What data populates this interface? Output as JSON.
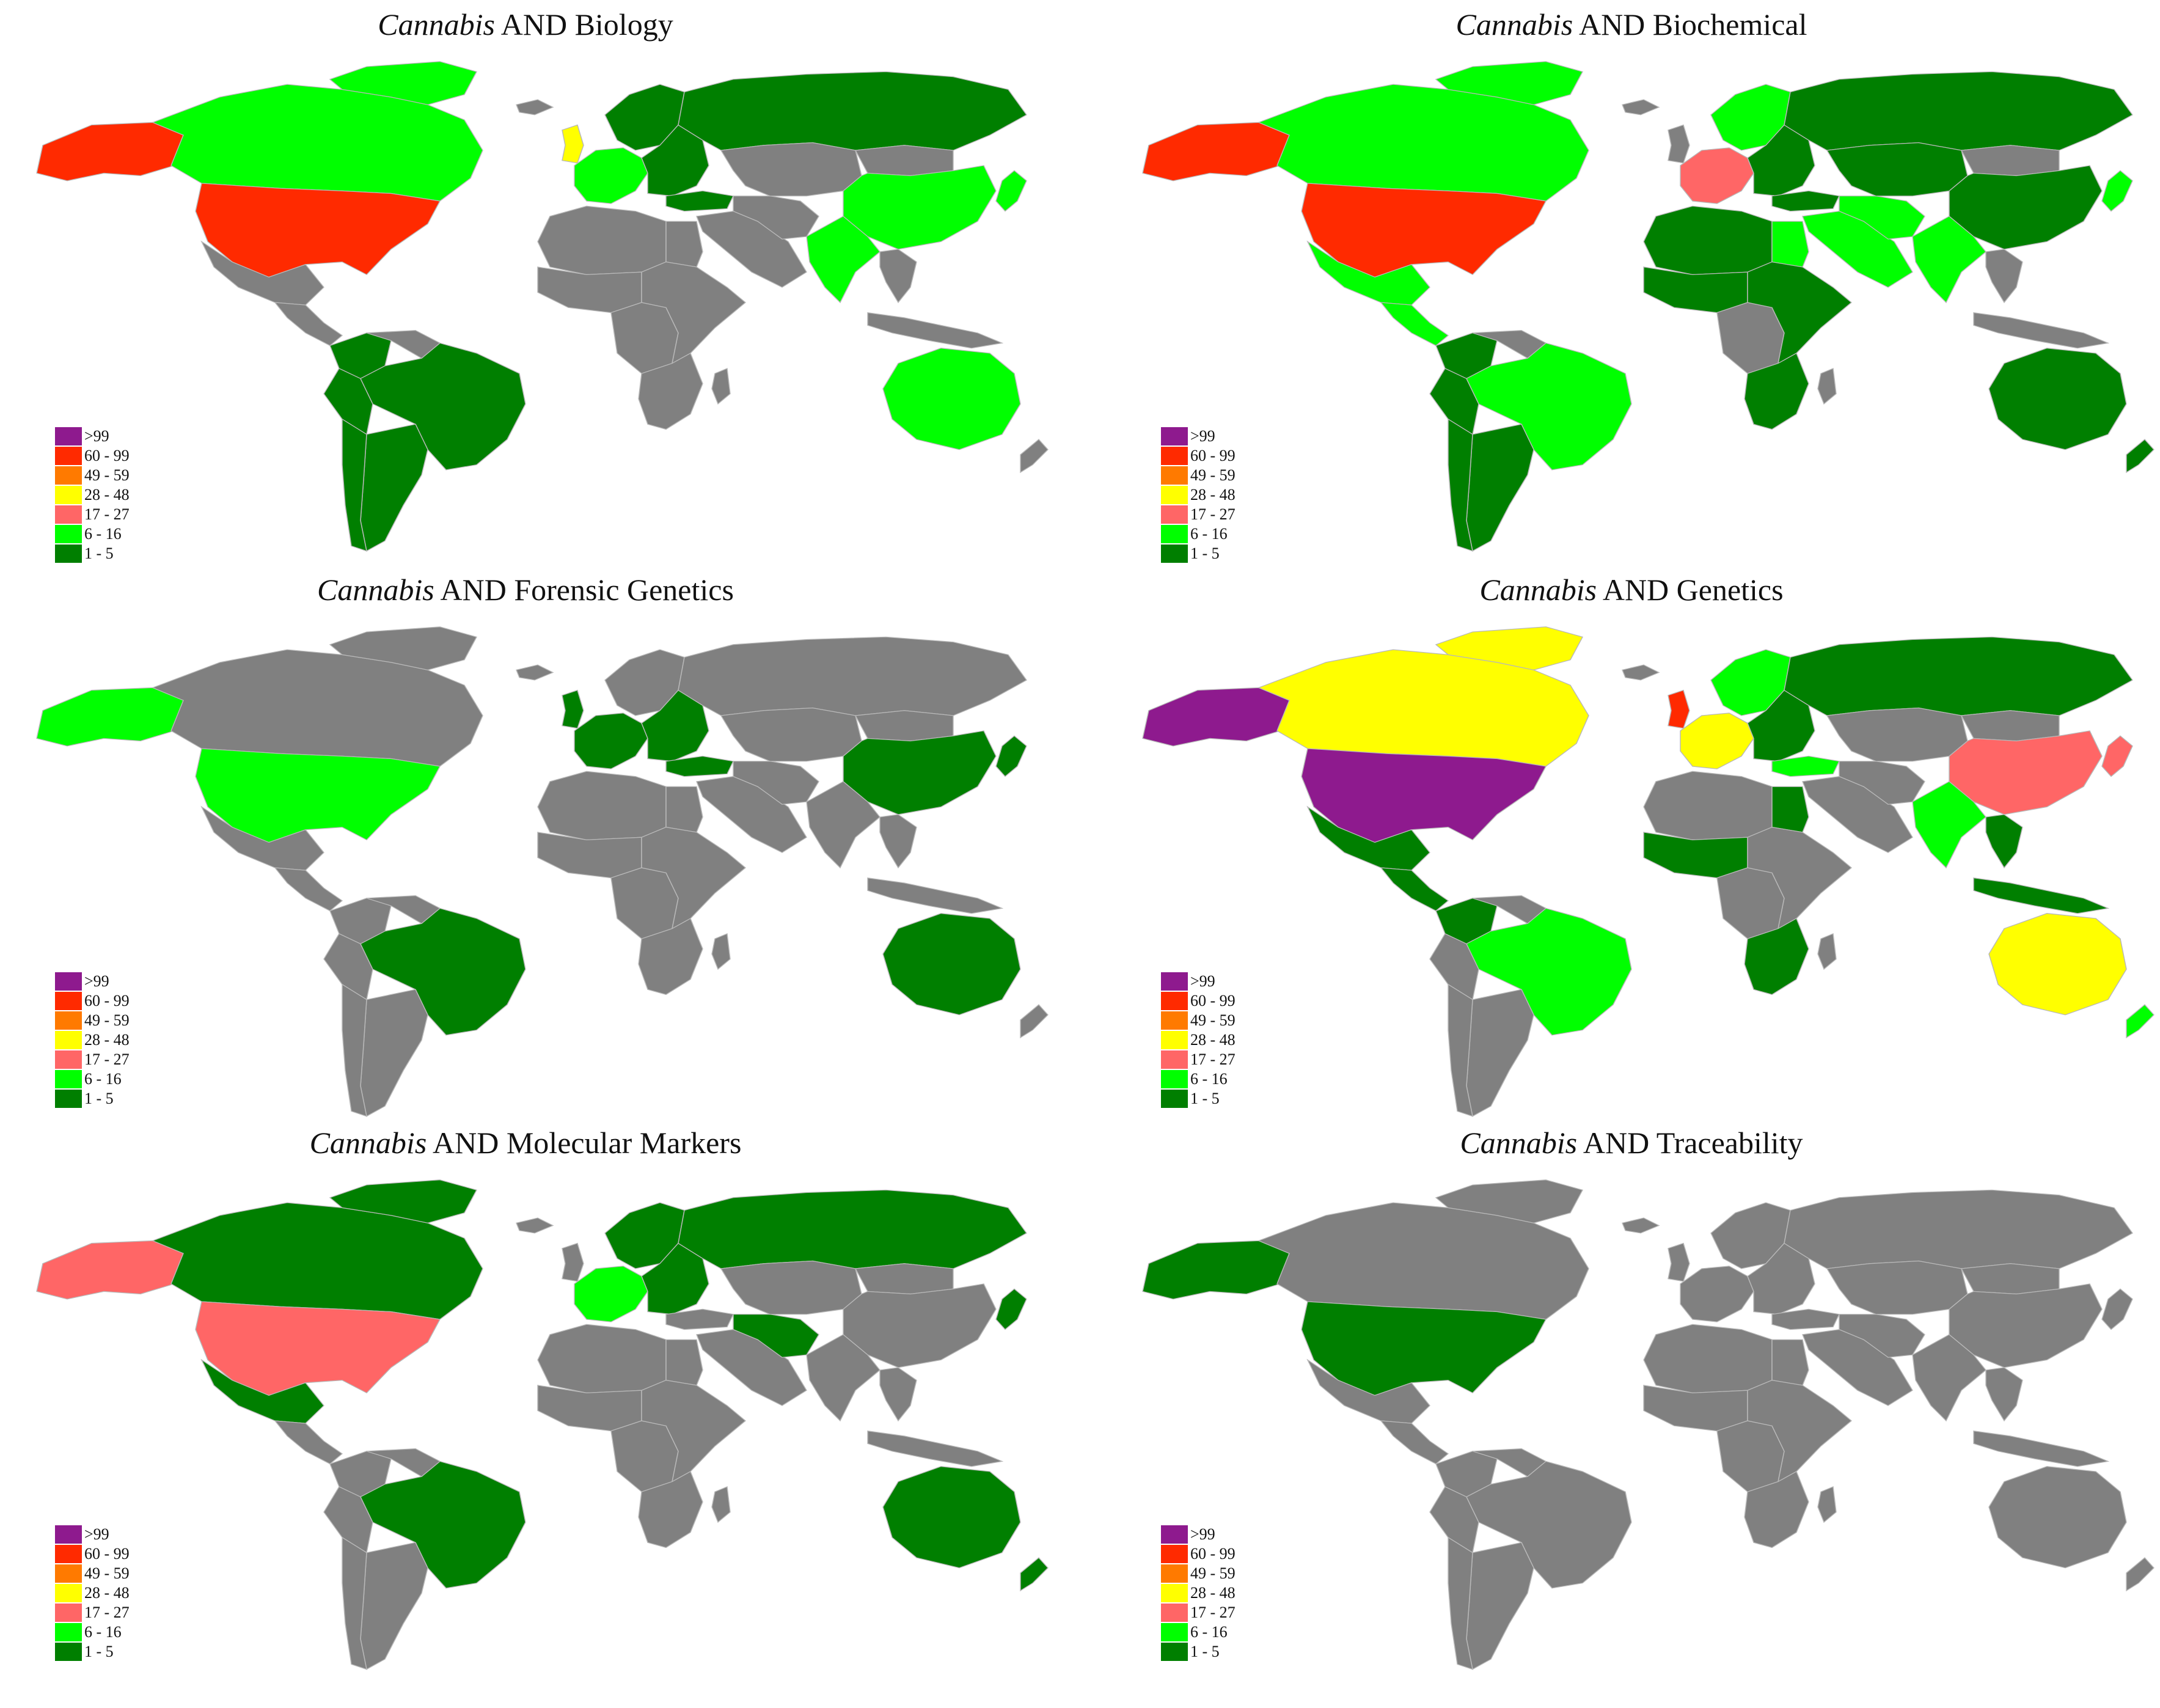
{
  "colors": {
    "none": "#808080",
    "border": "#b8b8b8",
    ">99": "#8e1a8e",
    "60 - 99": "#ff2a00",
    "49 - 59": "#ff7a00",
    "28 - 48": "#ffff00",
    "17 - 27": "#ff6666",
    "6 - 16": "#00ff00",
    "1 - 5": "#007f00"
  },
  "legend": {
    "items": [
      {
        "label": ">99",
        "key": ">99"
      },
      {
        "label": "60 - 99",
        "key": "60 - 99"
      },
      {
        "label": "49 - 59",
        "key": "49 - 59"
      },
      {
        "label": "28 - 48",
        "key": "28 - 48"
      },
      {
        "label": "17 - 27",
        "key": "17 - 27"
      },
      {
        "label": "6 - 16",
        "key": "6 - 16"
      },
      {
        "label": "1 - 5",
        "key": "1 - 5"
      }
    ]
  },
  "panels": [
    {
      "prefix": "Cannabis",
      "suffix": " AND Biology",
      "countries": {
        "alaska": "60 - 99",
        "canada": "6 - 16",
        "greenland": "6 - 16",
        "usa": "60 - 99",
        "mexico": "none",
        "central_america": "none",
        "colombia": "1 - 5",
        "venezuela": "none",
        "peru": "1 - 5",
        "brazil": "1 - 5",
        "argentina": "1 - 5",
        "chile": "1 - 5",
        "uk": "28 - 48",
        "iceland": "none",
        "scandinavia": "1 - 5",
        "western_europe": "6 - 16",
        "eastern_europe": "1 - 5",
        "russia": "1 - 5",
        "turkey": "1 - 5",
        "middle_east": "none",
        "iran": "none",
        "central_asia": "none",
        "india": "6 - 16",
        "china": "6 - 16",
        "mongolia": "none",
        "japan": "6 - 16",
        "se_asia": "none",
        "indonesia": "none",
        "north_africa": "none",
        "egypt": "none",
        "west_africa": "none",
        "central_africa": "none",
        "east_africa": "none",
        "south_africa": "none",
        "madagascar": "none",
        "australia": "6 - 16",
        "new_zealand": "none"
      }
    },
    {
      "prefix": "Cannabis",
      "suffix": " AND Biochemical",
      "countries": {
        "alaska": "60 - 99",
        "canada": "6 - 16",
        "greenland": "6 - 16",
        "usa": "60 - 99",
        "mexico": "6 - 16",
        "central_america": "6 - 16",
        "colombia": "1 - 5",
        "venezuela": "none",
        "peru": "1 - 5",
        "brazil": "6 - 16",
        "argentina": "1 - 5",
        "chile": "1 - 5",
        "uk": "none",
        "iceland": "none",
        "scandinavia": "6 - 16",
        "western_europe": "17 - 27",
        "eastern_europe": "1 - 5",
        "russia": "1 - 5",
        "turkey": "1 - 5",
        "middle_east": "6 - 16",
        "iran": "6 - 16",
        "central_asia": "1 - 5",
        "india": "6 - 16",
        "china": "1 - 5",
        "mongolia": "none",
        "japan": "6 - 16",
        "se_asia": "none",
        "indonesia": "none",
        "north_africa": "1 - 5",
        "egypt": "6 - 16",
        "west_africa": "1 - 5",
        "central_africa": "none",
        "east_africa": "1 - 5",
        "south_africa": "1 - 5",
        "madagascar": "none",
        "australia": "1 - 5",
        "new_zealand": "1 - 5"
      }
    },
    {
      "prefix": "Cannabis",
      "suffix": " AND Forensic Genetics",
      "countries": {
        "alaska": "6 - 16",
        "canada": "none",
        "greenland": "none",
        "usa": "6 - 16",
        "mexico": "none",
        "central_america": "none",
        "colombia": "none",
        "venezuela": "none",
        "peru": "none",
        "brazil": "1 - 5",
        "argentina": "none",
        "chile": "none",
        "uk": "1 - 5",
        "iceland": "none",
        "scandinavia": "none",
        "western_europe": "1 - 5",
        "eastern_europe": "1 - 5",
        "russia": "none",
        "turkey": "1 - 5",
        "middle_east": "none",
        "iran": "none",
        "central_asia": "none",
        "india": "none",
        "china": "1 - 5",
        "mongolia": "none",
        "japan": "1 - 5",
        "se_asia": "none",
        "indonesia": "none",
        "north_africa": "none",
        "egypt": "none",
        "west_africa": "none",
        "central_africa": "none",
        "east_africa": "none",
        "south_africa": "none",
        "madagascar": "none",
        "australia": "1 - 5",
        "new_zealand": "none"
      }
    },
    {
      "prefix": "Cannabis",
      "suffix": " AND Genetics",
      "countries": {
        "alaska": ">99",
        "canada": "28 - 48",
        "greenland": "28 - 48",
        "usa": ">99",
        "mexico": "1 - 5",
        "central_america": "1 - 5",
        "colombia": "1 - 5",
        "venezuela": "none",
        "peru": "none",
        "brazil": "6 - 16",
        "argentina": "none",
        "chile": "none",
        "uk": "60 - 99",
        "iceland": "none",
        "scandinavia": "6 - 16",
        "western_europe": "28 - 48",
        "eastern_europe": "1 - 5",
        "russia": "1 - 5",
        "turkey": "6 - 16",
        "middle_east": "none",
        "iran": "none",
        "central_asia": "none",
        "india": "6 - 16",
        "china": "17 - 27",
        "mongolia": "none",
        "japan": "17 - 27",
        "se_asia": "1 - 5",
        "indonesia": "1 - 5",
        "north_africa": "none",
        "egypt": "1 - 5",
        "west_africa": "1 - 5",
        "central_africa": "none",
        "east_africa": "none",
        "south_africa": "1 - 5",
        "madagascar": "none",
        "australia": "28 - 48",
        "new_zealand": "6 - 16"
      }
    },
    {
      "prefix": "Cannabis",
      "suffix": " AND Molecular Markers",
      "countries": {
        "alaska": "17 - 27",
        "canada": "1 - 5",
        "greenland": "1 - 5",
        "usa": "17 - 27",
        "mexico": "1 - 5",
        "central_america": "none",
        "colombia": "none",
        "venezuela": "none",
        "peru": "none",
        "brazil": "1 - 5",
        "argentina": "none",
        "chile": "none",
        "uk": "none",
        "iceland": "none",
        "scandinavia": "1 - 5",
        "western_europe": "6 - 16",
        "eastern_europe": "1 - 5",
        "russia": "1 - 5",
        "turkey": "none",
        "middle_east": "none",
        "iran": "1 - 5",
        "central_asia": "none",
        "india": "none",
        "china": "none",
        "mongolia": "none",
        "japan": "1 - 5",
        "se_asia": "none",
        "indonesia": "none",
        "north_africa": "none",
        "egypt": "none",
        "west_africa": "none",
        "central_africa": "none",
        "east_africa": "none",
        "south_africa": "none",
        "madagascar": "none",
        "australia": "1 - 5",
        "new_zealand": "1 - 5"
      }
    },
    {
      "prefix": "Cannabis",
      "suffix": " AND Traceability",
      "countries": {
        "alaska": "1 - 5",
        "canada": "none",
        "greenland": "none",
        "usa": "1 - 5",
        "mexico": "none",
        "central_america": "none",
        "colombia": "none",
        "venezuela": "none",
        "peru": "none",
        "brazil": "none",
        "argentina": "none",
        "chile": "none",
        "uk": "none",
        "iceland": "none",
        "scandinavia": "none",
        "western_europe": "none",
        "eastern_europe": "none",
        "russia": "none",
        "turkey": "none",
        "middle_east": "none",
        "iran": "none",
        "central_asia": "none",
        "india": "none",
        "china": "none",
        "mongolia": "none",
        "japan": "none",
        "se_asia": "none",
        "indonesia": "none",
        "north_africa": "none",
        "egypt": "none",
        "west_africa": "none",
        "central_africa": "none",
        "east_africa": "none",
        "south_africa": "none",
        "madagascar": "none",
        "australia": "none",
        "new_zealand": "none"
      }
    }
  ]
}
